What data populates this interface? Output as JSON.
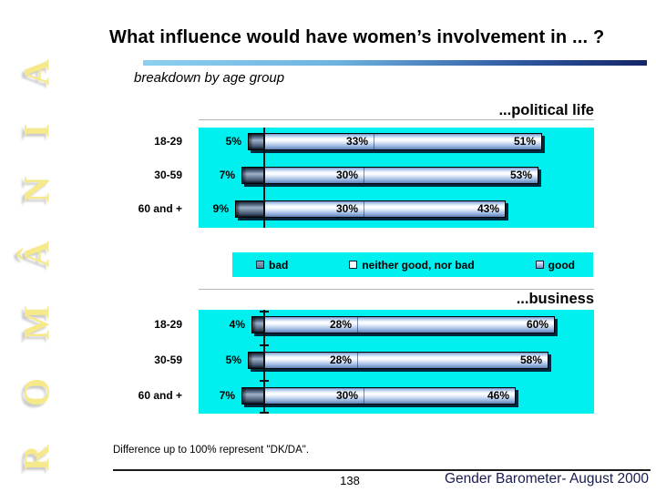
{
  "sidebar": {
    "vertical_text": "ROMÂNIA"
  },
  "header": {
    "title": "What influence would have women’s involvement in ... ?",
    "subtitle": "breakdown by age group"
  },
  "legend": [
    {
      "label": "bad",
      "swatch": "bad"
    },
    {
      "label": "neither good, nor bad",
      "swatch": "neither"
    },
    {
      "label": "good",
      "swatch": "good"
    }
  ],
  "chart_data": [
    {
      "type": "bar",
      "orientation": "horizontal",
      "stacked": true,
      "title": "...political life",
      "categories": [
        "18-29",
        "30-59",
        "60 and +"
      ],
      "series": [
        {
          "name": "bad",
          "values": [
            5,
            7,
            9
          ]
        },
        {
          "name": "neither good, nor bad",
          "values": [
            33,
            30,
            30
          ]
        },
        {
          "name": "good",
          "values": [
            51,
            53,
            43
          ]
        }
      ],
      "value_suffix": "%",
      "background": "#00EFEF",
      "axis_ticks": false,
      "legend_position": "below"
    },
    {
      "type": "bar",
      "orientation": "horizontal",
      "stacked": true,
      "title": "...business",
      "categories": [
        "18-29",
        "30-59",
        "60 and +"
      ],
      "series": [
        {
          "name": "bad",
          "values": [
            4,
            5,
            7
          ]
        },
        {
          "name": "neither good, nor bad",
          "values": [
            28,
            28,
            30
          ]
        },
        {
          "name": "good",
          "values": [
            60,
            58,
            46
          ]
        }
      ],
      "value_suffix": "%",
      "background": "#00EFEF",
      "axis_ticks": true,
      "legend_position": "none"
    }
  ],
  "footnote": "Difference up to 100% represent \"DK/DA\".",
  "footer": {
    "page_number": "138",
    "source": "Gender Barometer- August 2000"
  },
  "colors": {
    "panel_cyan": "#00EFEF",
    "accent_gradient_start": "#8CCFF0",
    "accent_gradient_end": "#132566",
    "sidebar_text": "#F5E98C"
  }
}
